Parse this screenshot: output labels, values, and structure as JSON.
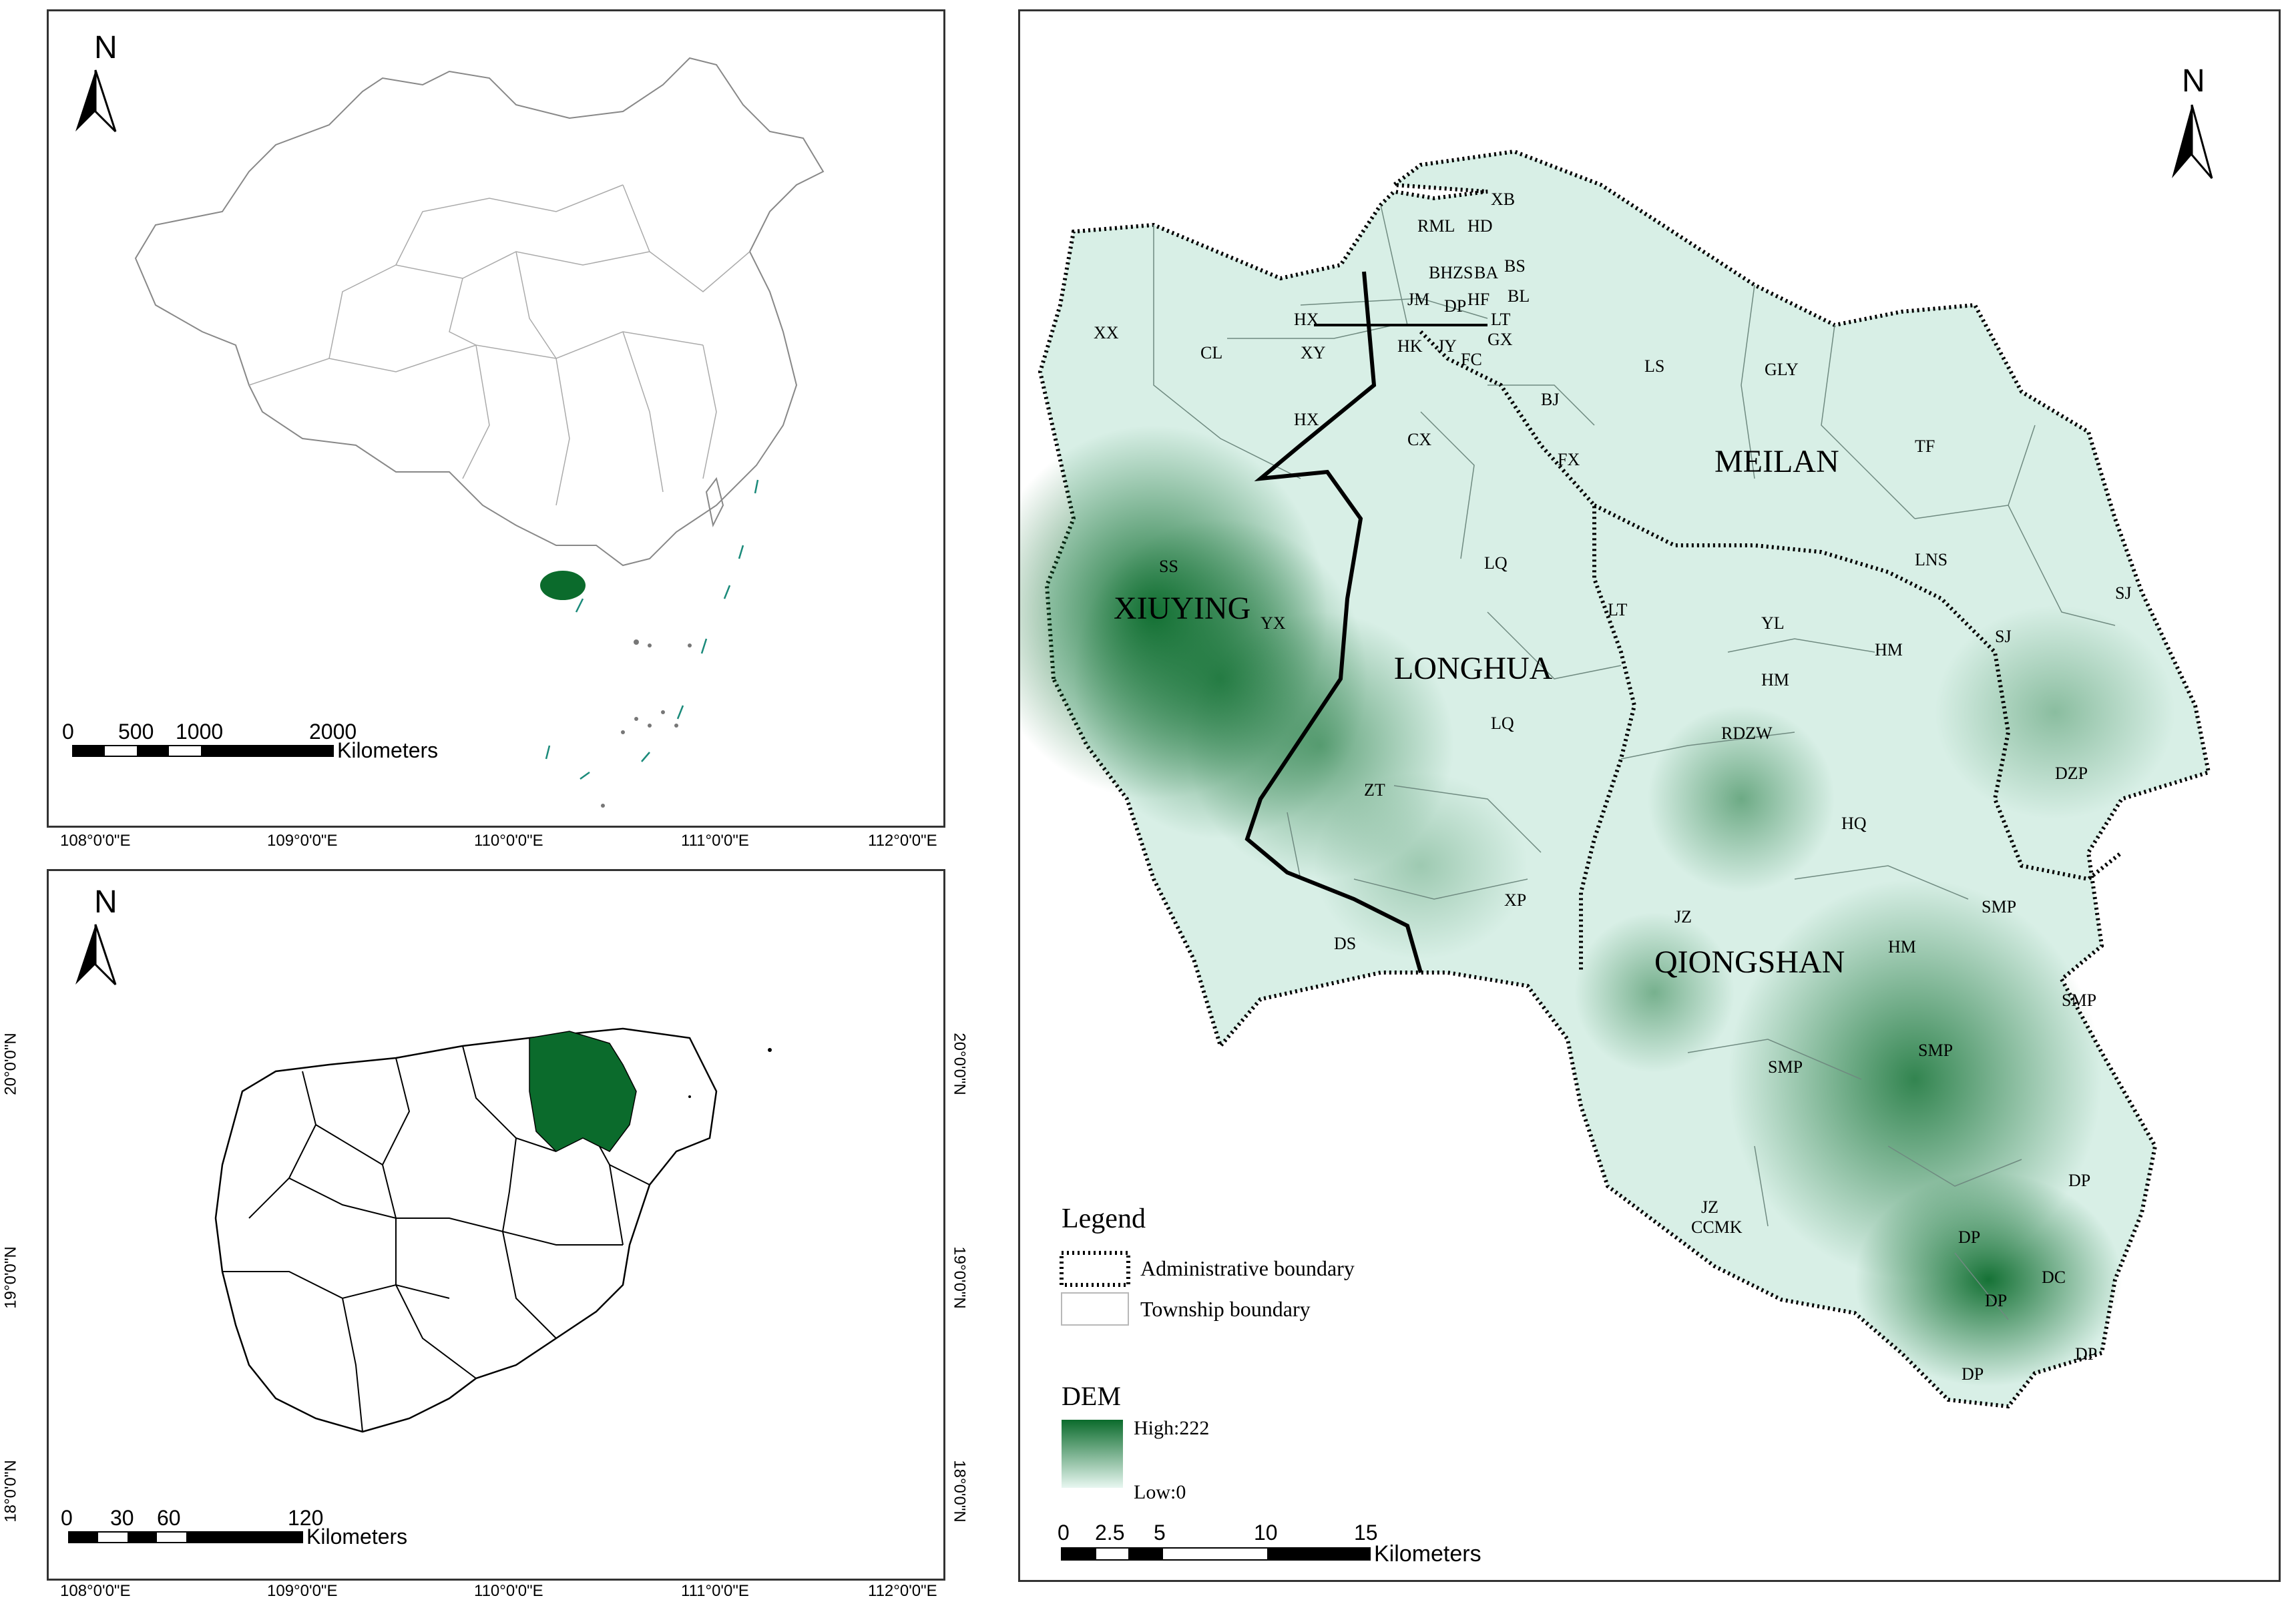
{
  "colors": {
    "highlight": "#0b6b2c",
    "dem_high": "#0b6b2c",
    "dem_low": "#e8f7f1",
    "boundary": "#000000",
    "township_line": "#6f8a80",
    "island_teal": "#1a8a7a"
  },
  "china_panel": {
    "north_label": "N",
    "scale_ticks": [
      "0",
      "500",
      "1000",
      "2000"
    ],
    "scale_unit": "Kilometers",
    "lon_labels": [
      "108°0'0\"E",
      "109°0'0\"E",
      "110°0'0\"E",
      "111°0'0\"E",
      "112°0'0\"E"
    ]
  },
  "hainan_panel": {
    "north_label": "N",
    "scale_ticks": [
      "0",
      "30",
      "60",
      "120"
    ],
    "scale_unit": "Kilometers",
    "lon_labels": [
      "108°0'0\"E",
      "109°0'0\"E",
      "110°0'0\"E",
      "111°0'0\"E",
      "112°0'0\"E"
    ],
    "lat_labels": [
      "20°0'0\"N",
      "19°0'0\"N",
      "18°0'0\"N"
    ]
  },
  "main_map": {
    "north_label": "N",
    "districts": [
      "XIUYING",
      "LONGHUA",
      "MEILAN",
      "QIONGSHAN"
    ],
    "townships": [
      "XB",
      "RML",
      "HD",
      "BH",
      "ZS",
      "BA",
      "BS",
      "JM",
      "DP",
      "HF",
      "BL",
      "LT",
      "HX",
      "XY",
      "HK",
      "JY",
      "FC",
      "GX",
      "XX",
      "CL",
      "HX",
      "CX",
      "BJ",
      "LS",
      "GLY",
      "TF",
      "FX",
      "SS",
      "LQ",
      "LNS",
      "SJ",
      "SJ",
      "LT",
      "YX",
      "YL",
      "HM",
      "HM",
      "LQ",
      "RDZW",
      "DZP",
      "ZT",
      "HQ",
      "DS",
      "XP",
      "JZ",
      "SMP",
      "HM",
      "SMP",
      "SMP",
      "SMP",
      "DP",
      "JZ",
      "CCMK",
      "DP",
      "DC",
      "DP",
      "DP",
      "DP"
    ],
    "legend": {
      "title": "Legend",
      "admin": "Administrative boundary",
      "township": "Township boundary",
      "dem_title": "DEM",
      "high": "High:222",
      "low": "Low:0"
    },
    "scale_ticks": [
      "0",
      "2.5",
      "5",
      "10",
      "15"
    ],
    "scale_unit": "Kilometers"
  }
}
